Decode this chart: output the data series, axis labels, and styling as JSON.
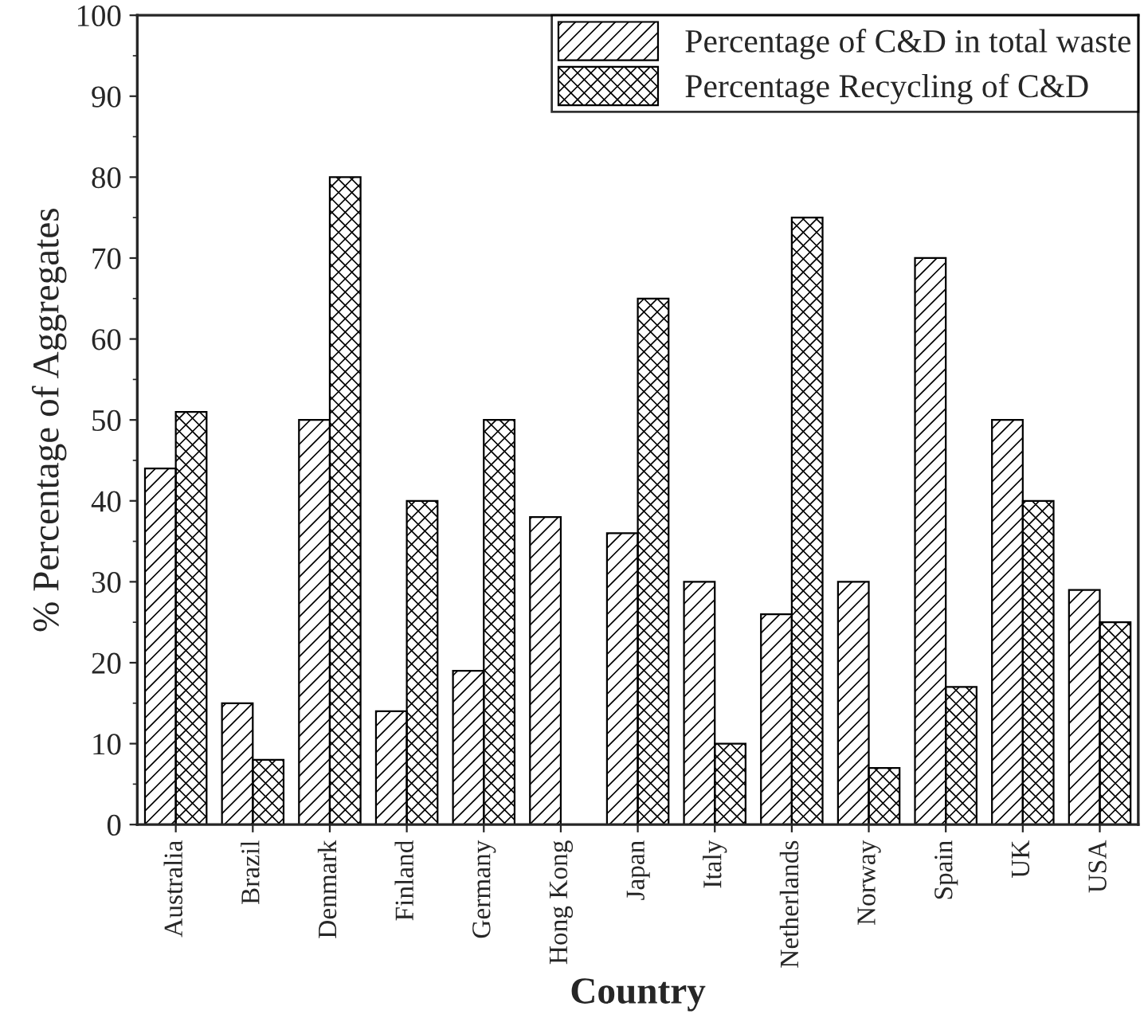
{
  "chart_data": {
    "type": "bar",
    "xlabel": "Country",
    "ylabel": "% Percentage of Aggregates",
    "categories": [
      "Australia",
      "Brazil",
      "Denmark",
      "Finland",
      "Germany",
      "Hong Kong",
      "Japan",
      "Italy",
      "Netherlands",
      "Norway",
      "Spain",
      "UK",
      "USA"
    ],
    "series": [
      {
        "name": "Percentage of C&D in total waste",
        "color": "#000000",
        "values": [
          44,
          15,
          50,
          14,
          19,
          38,
          36,
          30,
          26,
          30,
          70,
          50,
          29
        ]
      },
      {
        "name": "Percentage Recycling of C&D",
        "color": "#000000",
        "values": [
          51,
          8,
          80,
          40,
          50,
          null,
          65,
          10,
          75,
          7,
          17,
          40,
          25
        ]
      }
    ],
    "ylim": [
      0,
      100
    ],
    "yticks": [
      0,
      10,
      20,
      30,
      40,
      50,
      60,
      70,
      80,
      90,
      100
    ],
    "legend": "top right",
    "grid": false
  }
}
